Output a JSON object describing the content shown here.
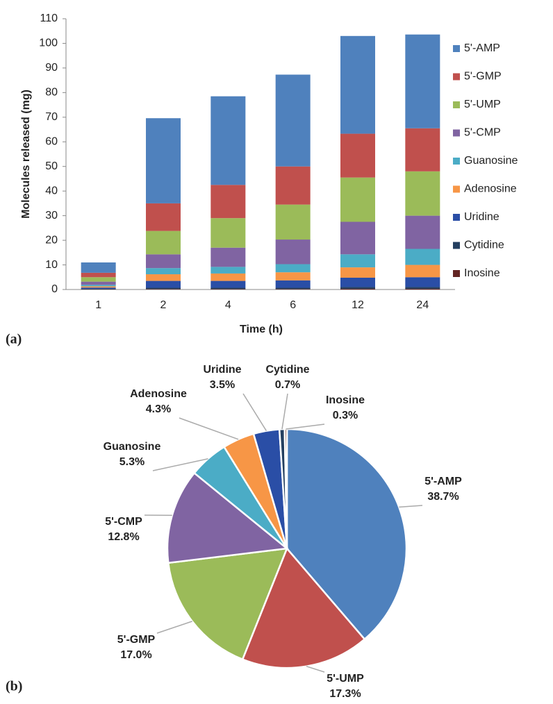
{
  "chart_data": [
    {
      "type": "bar",
      "stacked": true,
      "panel_label": "(a)",
      "y_label": "Molecules released (mg)",
      "x_label": "Time (h)",
      "categories": [
        "1",
        "2",
        "4",
        "6",
        "12",
        "24"
      ],
      "ylim": [
        0,
        110
      ],
      "yticks": [
        0,
        10,
        20,
        30,
        40,
        50,
        60,
        70,
        80,
        90,
        100,
        110
      ],
      "grid": false,
      "legend": "right",
      "series": [
        {
          "name": "Inosine",
          "color": "#632523",
          "values": [
            0.1,
            0.2,
            0.2,
            0.2,
            0.3,
            0.3
          ]
        },
        {
          "name": "Cytidine",
          "color": "#243f60",
          "values": [
            0.2,
            0.5,
            0.5,
            0.5,
            0.7,
            0.7
          ]
        },
        {
          "name": "Uridine",
          "color": "#2a4ea6",
          "values": [
            0.5,
            2.8,
            2.8,
            3.0,
            3.8,
            4.0
          ]
        },
        {
          "name": "Adenosine",
          "color": "#f79646",
          "values": [
            0.5,
            2.7,
            3.0,
            3.3,
            4.2,
            5.0
          ]
        },
        {
          "name": "Guanosine",
          "color": "#4bacc6",
          "values": [
            0.6,
            2.5,
            2.7,
            3.3,
            5.3,
            6.5
          ]
        },
        {
          "name": "5'-CMP",
          "color": "#8064a2",
          "values": [
            1.3,
            5.6,
            7.8,
            10.0,
            13.2,
            13.5
          ]
        },
        {
          "name": "5'-UMP",
          "color": "#9bbb59",
          "values": [
            1.8,
            9.5,
            12.0,
            14.2,
            18.0,
            18.0
          ]
        },
        {
          "name": "5'-GMP",
          "color": "#c0504d",
          "values": [
            1.8,
            11.2,
            13.5,
            15.5,
            17.8,
            17.5
          ]
        },
        {
          "name": "5'-AMP",
          "color": "#4f81bd",
          "values": [
            4.2,
            34.6,
            36.0,
            37.3,
            39.7,
            38.1
          ]
        }
      ]
    },
    {
      "type": "pie",
      "panel_label": "(b)",
      "categories": [
        "5'-AMP",
        "5'-UMP",
        "5'-GMP",
        "5'-CMP",
        "Guanosine",
        "Adenosine",
        "Uridine",
        "Cytidine",
        "Inosine"
      ],
      "values": [
        38.7,
        17.3,
        17.0,
        12.8,
        5.3,
        4.3,
        3.5,
        0.7,
        0.3
      ],
      "value_labels": [
        "38.7%",
        "17.3%",
        "17.0%",
        "12.8%",
        "5.3%",
        "4.3%",
        "3.5%",
        "0.7%",
        "0.3%"
      ],
      "colors": [
        "#4f81bd",
        "#c0504d",
        "#9bbb59",
        "#8064a2",
        "#4bacc6",
        "#f79646",
        "#2a4ea6",
        "#243f60",
        "#632523"
      ]
    }
  ]
}
